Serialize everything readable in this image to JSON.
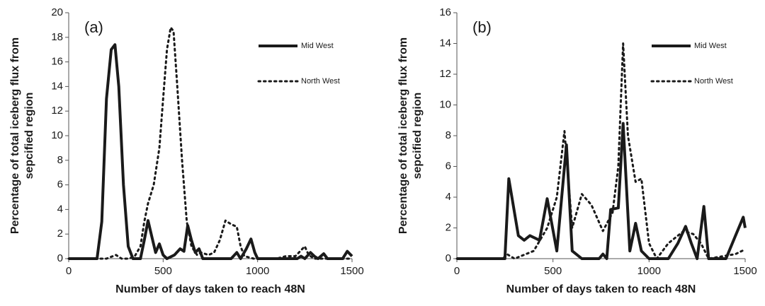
{
  "chart_data": [
    {
      "type": "line",
      "label": "(a)",
      "xlabel": "Number of days taken to reach 48N",
      "ylabel": [
        "Percentage of total iceberg flux from",
        "sepcified region"
      ],
      "xlim": [
        0,
        1500
      ],
      "xticks": [
        0,
        500,
        1000,
        1500
      ],
      "ylim": [
        0,
        20
      ],
      "yticks": [
        0,
        2,
        4,
        6,
        8,
        10,
        12,
        14,
        16,
        18,
        20
      ],
      "series": [
        {
          "name": "Mid West",
          "color": "#1a1a1a",
          "style": "solid",
          "x": [
            0,
            150,
            175,
            200,
            225,
            245,
            265,
            290,
            315,
            340,
            380,
            400,
            420,
            440,
            460,
            480,
            500,
            520,
            560,
            590,
            610,
            630,
            650,
            670,
            690,
            710,
            860,
            890,
            910,
            940,
            965,
            985,
            1000,
            1210,
            1230,
            1250,
            1280,
            1300,
            1320,
            1350,
            1370,
            1450,
            1475,
            1500
          ],
          "values": [
            0,
            0,
            3,
            13,
            17,
            17.4,
            14,
            6,
            1,
            0,
            0,
            1.5,
            3.1,
            1.8,
            0.5,
            1.2,
            0.3,
            0,
            0.3,
            0.8,
            0.6,
            2.7,
            1.5,
            0.5,
            0.8,
            0,
            0,
            0.5,
            0,
            0.8,
            1.6,
            0.5,
            0,
            0,
            0.2,
            0,
            0.5,
            0.2,
            0,
            0.4,
            0,
            0,
            0.6,
            0.2
          ]
        },
        {
          "name": "North West",
          "color": "#1a1a1a",
          "style": "dotted",
          "x": [
            0,
            200,
            250,
            280,
            320,
            350,
            380,
            400,
            420,
            450,
            480,
            500,
            520,
            540,
            555,
            575,
            600,
            625,
            650,
            680,
            700,
            740,
            770,
            800,
            830,
            860,
            890,
            910,
            930,
            980,
            1100,
            1150,
            1200,
            1250,
            1270,
            1300,
            1500
          ],
          "values": [
            0,
            0,
            0.3,
            0,
            0,
            0.2,
            1,
            3,
            4.5,
            6,
            9,
            13,
            17,
            18.8,
            18.5,
            14,
            8,
            3,
            1,
            0.3,
            0.5,
            0.3,
            0.5,
            1.5,
            3.1,
            2.8,
            2.6,
            1,
            0.2,
            0,
            0,
            0.2,
            0.2,
            1,
            0.3,
            0,
            0
          ]
        }
      ]
    },
    {
      "type": "line",
      "label": "(b)",
      "xlabel": "Number of days taken to reach 48N",
      "ylabel": [
        "Percentage of total iceberg flux from",
        "sepcified region"
      ],
      "xlim": [
        0,
        1500
      ],
      "xticks": [
        0,
        500,
        1000,
        1500
      ],
      "ylim": [
        0,
        16
      ],
      "yticks": [
        0,
        2,
        4,
        6,
        8,
        10,
        12,
        14,
        16
      ],
      "series": [
        {
          "name": "Mid West",
          "color": "#1a1a1a",
          "style": "solid",
          "x": [
            0,
            250,
            270,
            320,
            350,
            380,
            430,
            470,
            520,
            570,
            600,
            650,
            740,
            760,
            780,
            800,
            840,
            865,
            900,
            930,
            960,
            1000,
            1100,
            1150,
            1190,
            1220,
            1250,
            1285,
            1310,
            1400,
            1450,
            1490,
            1500
          ],
          "values": [
            0,
            0,
            5.2,
            1.5,
            1.2,
            1.5,
            1.2,
            3.9,
            0.5,
            7.4,
            0.5,
            0,
            0,
            0.3,
            0,
            3.2,
            3.3,
            8.8,
            0.5,
            2.3,
            0.5,
            0,
            0,
            1,
            2.1,
            1,
            0,
            3.4,
            0,
            0,
            1.5,
            2.7,
            2
          ]
        },
        {
          "name": "North West",
          "color": "#1a1a1a",
          "style": "dotted",
          "x": [
            0,
            240,
            260,
            300,
            400,
            470,
            520,
            560,
            600,
            650,
            700,
            760,
            810,
            840,
            865,
            890,
            930,
            960,
            1000,
            1040,
            1100,
            1180,
            1230,
            1270,
            1310,
            1450,
            1500
          ],
          "values": [
            0,
            0,
            0.3,
            0,
            0.5,
            2,
            4,
            8.3,
            2,
            4.2,
            3.5,
            1.8,
            3,
            6,
            14,
            8,
            5,
            5.2,
            1,
            0,
            1,
            1.8,
            1.6,
            1,
            0,
            0.3,
            0.6
          ]
        }
      ]
    }
  ]
}
